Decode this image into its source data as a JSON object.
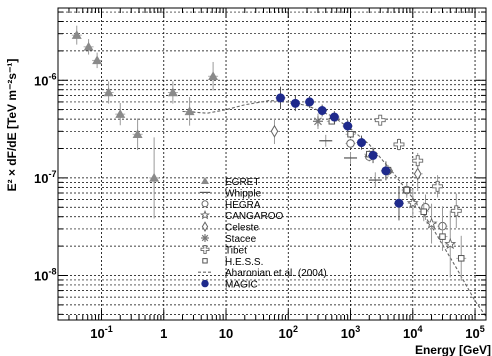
{
  "chart_data": {
    "type": "scatter",
    "xlabel": "Energy [GeV]",
    "ylabel": "E² × dF/dE [TeV m⁻²s⁻¹]",
    "xscale": "log",
    "yscale": "log",
    "xlim": [
      0.02,
      150000
    ],
    "ylim": [
      3.5e-09,
      5.5e-06
    ],
    "grid": true,
    "legend_position": "lower-center",
    "xticks": [
      {
        "value": 0.1,
        "base": "10",
        "exp": "-1"
      },
      {
        "value": 1,
        "base": "1",
        "exp": ""
      },
      {
        "value": 10,
        "base": "10",
        "exp": ""
      },
      {
        "value": 100,
        "base": "10",
        "exp": "2"
      },
      {
        "value": 1000,
        "base": "10",
        "exp": "3"
      },
      {
        "value": 10000,
        "base": "10",
        "exp": "4"
      },
      {
        "value": 100000,
        "base": "10",
        "exp": "5"
      }
    ],
    "yticks": [
      {
        "value": 1e-06,
        "base": "10",
        "exp": "-6"
      },
      {
        "value": 1e-07,
        "base": "10",
        "exp": "-7"
      },
      {
        "value": 1e-08,
        "base": "10",
        "exp": "-8"
      }
    ],
    "series": [
      {
        "name": "EGRET",
        "marker": "triangle",
        "color": "#8a8a8a",
        "points": [
          [
            0.04,
            2.9e-06
          ],
          [
            0.062,
            2.2e-06
          ],
          [
            0.085,
            1.6e-06
          ],
          [
            0.13,
            7.5e-07
          ],
          [
            0.2,
            4.5e-07
          ],
          [
            0.38,
            2.8e-07
          ],
          [
            0.7,
            1e-07
          ],
          [
            1.4,
            7.5e-07
          ],
          [
            2.6,
            4.8e-07
          ],
          [
            6.2,
            1.1e-06
          ]
        ],
        "yerr_factor": [
          1.25,
          1.2,
          1.2,
          1.3,
          1.3,
          1.45,
          2.6,
          1.3,
          1.4,
          1.4
        ]
      },
      {
        "name": "Whipple",
        "marker": "dash",
        "color": "#555555",
        "points": [
          [
            400,
            2.4e-07
          ],
          [
            1000,
            1.6e-07
          ],
          [
            2500,
            9.5e-08
          ]
        ],
        "yerr_factor": [
          1.15,
          1.15,
          1.2
        ]
      },
      {
        "name": "HEGRA",
        "marker": "circle-open",
        "color": "#666666",
        "points": [
          [
            1000,
            2.25e-07
          ],
          [
            2000,
            1.65e-07
          ],
          [
            4000,
            1.18e-07
          ],
          [
            8000,
            7.5e-08
          ],
          [
            16000,
            5e-08
          ],
          [
            30000,
            3.2e-08
          ]
        ],
        "yerr_factor": [
          1.12,
          1.12,
          1.15,
          1.2,
          1.35,
          1.6
        ]
      },
      {
        "name": "CANGAROO",
        "marker": "star",
        "color": "#666666",
        "points": [
          [
            10000,
            5.5e-08
          ],
          [
            20000,
            3.4e-08
          ],
          [
            40000,
            2.1e-08
          ]
        ],
        "yerr_factor": [
          1.4,
          1.6,
          2.2
        ]
      },
      {
        "name": "Celeste",
        "marker": "diamond-open",
        "color": "#666666",
        "points": [
          [
            60,
            3e-07
          ],
          [
            12000,
            1.1e-07
          ]
        ],
        "yerr_factor": [
          1.35,
          1.5
        ]
      },
      {
        "name": "Stacee",
        "marker": "asterisk",
        "color": "#777777",
        "points": [
          [
            300,
            3.8e-07
          ]
        ],
        "yerr_factor": [
          1.2
        ]
      },
      {
        "name": "Tibet",
        "marker": "plus-open",
        "color": "#666666",
        "points": [
          [
            3000,
            3.9e-07
          ],
          [
            6000,
            2.2e-07
          ],
          [
            12000,
            1.5e-07
          ],
          [
            25000,
            8.2e-08
          ],
          [
            50000,
            4.6e-08
          ]
        ],
        "yerr_factor": [
          1.08,
          1.15,
          1.2,
          1.3,
          1.5
        ]
      },
      {
        "name": "H.E.S.S.",
        "marker": "square-open",
        "color": "#555555",
        "points": [
          [
            500,
            3.8e-07
          ],
          [
            1000,
            2.8e-07
          ],
          [
            2000,
            1.75e-07
          ],
          [
            4000,
            1.2e-07
          ],
          [
            8000,
            7.5e-08
          ],
          [
            15000,
            4.5e-08
          ],
          [
            30000,
            2.5e-08
          ],
          [
            60000,
            1.5e-08
          ]
        ],
        "yerr_factor": [
          1.08,
          1.08,
          1.1,
          1.12,
          1.15,
          1.25,
          1.4,
          1.7
        ]
      },
      {
        "name": "MAGIC",
        "marker": "circle-filled",
        "color": "#1f2a8c",
        "points": [
          [
            75,
            6.6e-07
          ],
          [
            130,
            5.8e-07
          ],
          [
            220,
            6e-07
          ],
          [
            350,
            4.9e-07
          ],
          [
            550,
            4.2e-07
          ],
          [
            900,
            3.4e-07
          ],
          [
            1500,
            2.3e-07
          ],
          [
            2300,
            1.7e-07
          ],
          [
            3700,
            1.18e-07
          ],
          [
            6000,
            5.5e-08
          ]
        ],
        "yerr_factor": [
          1.3,
          1.2,
          1.15,
          1.15,
          1.15,
          1.15,
          1.18,
          1.2,
          1.25,
          1.5
        ]
      }
    ],
    "curve": {
      "name": "Aharonian et al. (2004)",
      "style": "dashed",
      "color": "#666666",
      "points": [
        [
          2,
          4.8e-07
        ],
        [
          5,
          4.6e-07
        ],
        [
          10,
          5e-07
        ],
        [
          20,
          5.6e-07
        ],
        [
          50,
          6.2e-07
        ],
        [
          100,
          6e-07
        ],
        [
          200,
          5.5e-07
        ],
        [
          500,
          4.3e-07
        ],
        [
          1000,
          3.2e-07
        ],
        [
          2000,
          2.2e-07
        ],
        [
          5000,
          1.1e-07
        ],
        [
          10000,
          6.2e-08
        ],
        [
          20000,
          3.2e-08
        ],
        [
          50000,
          1.2e-08
        ],
        [
          100000,
          5.5e-09
        ],
        [
          150000,
          3.8e-09
        ]
      ]
    },
    "legend": [
      "EGRET",
      "Whipple",
      "HEGRA",
      "CANGAROO",
      "Celeste",
      "Stacee",
      "Tibet",
      "H.E.S.S.",
      "Aharonian et al. (2004)",
      "MAGIC"
    ]
  }
}
